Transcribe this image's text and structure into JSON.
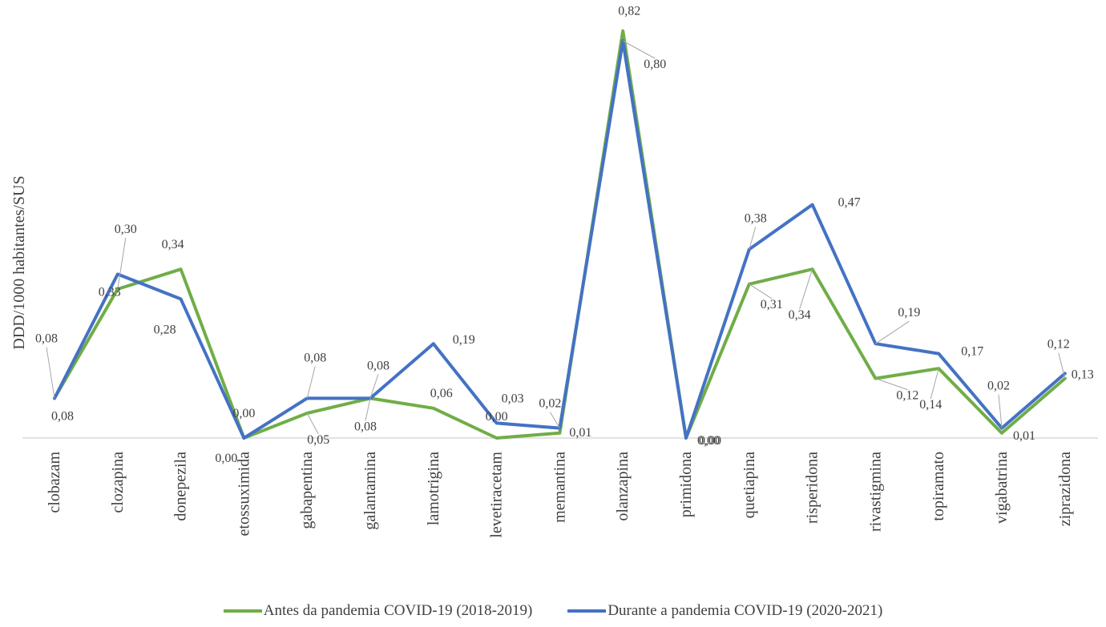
{
  "chart_data": {
    "type": "line",
    "ylabel": "DDD/1000 habitantes/SUS",
    "xlabel": "",
    "title": "",
    "ylim": [
      0,
      0.85
    ],
    "grid": false,
    "legend_position": "bottom",
    "categories": [
      "clobazam",
      "clozapina",
      "donepezila",
      "etossuximida",
      "gabapentina",
      "galantamina",
      "lamotrigina",
      "levetiracetam",
      "memantina",
      "olanzapina",
      "primidona",
      "quetiapina",
      "risperidona",
      "rivastigmina",
      "topiramato",
      "vigabatrina",
      "ziprazidona"
    ],
    "series": [
      {
        "name": "Antes da pandemia COVID-19 (2018-2019)",
        "color": "#70ad47",
        "values": [
          0.08,
          0.3,
          0.34,
          0.0,
          0.05,
          0.08,
          0.06,
          0.0,
          0.01,
          0.82,
          0.0,
          0.31,
          0.34,
          0.12,
          0.14,
          0.01,
          0.12
        ],
        "labels": [
          "0,08",
          "0,30",
          "0,34",
          "0,00",
          "0,05",
          "0,08",
          "0,06",
          "0,00",
          "0,01",
          "0,82",
          "0,00",
          "0,31",
          "0,34",
          "0,12",
          "0,14",
          "0,01",
          "0,12"
        ]
      },
      {
        "name": "Durante a pandemia COVID-19 (2020-2021)",
        "color": "#4472c4",
        "values": [
          0.08,
          0.33,
          0.28,
          0.0,
          0.08,
          0.08,
          0.19,
          0.03,
          0.02,
          0.8,
          0.0,
          0.38,
          0.47,
          0.19,
          0.17,
          0.02,
          0.13
        ],
        "labels": [
          "0,08",
          "0,33",
          "0,28",
          "0,00",
          "0,08",
          "0,08",
          "0,19",
          "0,03",
          "0,02",
          "0,80",
          "0,00",
          "0,38",
          "0,47",
          "0,19",
          "0,17",
          "0,02",
          "0,13"
        ]
      }
    ]
  }
}
